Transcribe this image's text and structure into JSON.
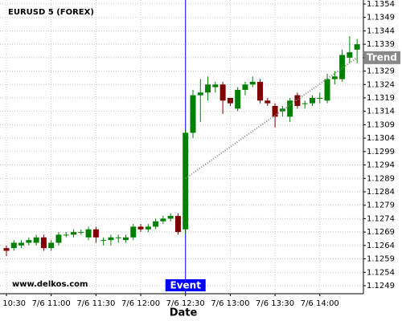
{
  "chart_data": {
    "type": "candlestick",
    "title": "EURUSD 5 (FOREX)",
    "watermark": "www.delkos.com",
    "x_label": "Date",
    "categories": [
      "7/6 10:30",
      null,
      null,
      null,
      null,
      null,
      "7/6 11:00",
      null,
      null,
      null,
      null,
      null,
      "7/6 11:30",
      null,
      null,
      null,
      null,
      null,
      "7/6 12:00",
      null,
      null,
      null,
      null,
      null,
      "7/6 12:30",
      null,
      null,
      null,
      null,
      null,
      "7/6 13:00",
      null,
      null,
      null,
      null,
      null,
      "7/6 13:30",
      null,
      null,
      null,
      null,
      null,
      "7/6 14:00",
      null,
      null,
      null,
      null,
      null
    ],
    "series": [
      {
        "name": "open",
        "values": [
          1.1263,
          1.1263,
          1.1264,
          1.1265,
          1.1265,
          1.1267,
          1.1263,
          1.1265,
          1.1268,
          1.1268,
          1.1269,
          1.1267,
          1.127,
          1.1266,
          1.1266,
          1.1267,
          1.1266,
          1.1267,
          1.1271,
          1.127,
          1.1271,
          1.1273,
          1.1274,
          1.1275,
          1.127,
          1.1306,
          1.132,
          1.1321,
          1.1323,
          1.1324,
          1.1319,
          1.1315,
          1.1322,
          1.1324,
          1.1325,
          1.1318,
          1.1316,
          1.1314,
          1.1312,
          1.132,
          1.1317,
          1.1317,
          1.1319,
          1.1318,
          1.1326,
          1.1326,
          1.1334,
          1.1337
        ]
      },
      {
        "name": "high",
        "values": [
          1.1264,
          1.1266,
          1.1266,
          1.1267,
          1.1268,
          1.1268,
          1.1266,
          1.1269,
          1.1269,
          1.127,
          1.127,
          1.1271,
          1.1271,
          1.1267,
          1.1268,
          1.1268,
          1.1268,
          1.1272,
          1.1272,
          1.1272,
          1.1274,
          1.1275,
          1.1276,
          1.1276,
          1.1307,
          1.1322,
          1.1326,
          1.1327,
          1.1325,
          1.1325,
          1.1319,
          1.1323,
          1.1325,
          1.1327,
          1.1326,
          1.1319,
          1.1317,
          1.1316,
          1.1319,
          1.1321,
          1.1318,
          1.132,
          1.1321,
          1.1328,
          1.1329,
          1.1337,
          1.1342,
          1.1341
        ]
      },
      {
        "name": "low",
        "values": [
          1.126,
          1.1262,
          1.1263,
          1.1264,
          1.1264,
          1.1262,
          1.1262,
          1.1264,
          1.1267,
          1.1267,
          1.1268,
          1.1266,
          1.1265,
          1.1264,
          1.1264,
          1.1265,
          1.1265,
          1.1266,
          1.1269,
          1.1269,
          1.127,
          1.1272,
          1.1273,
          1.1268,
          1.1268,
          1.1304,
          1.131,
          1.1318,
          1.1321,
          1.1313,
          1.1316,
          1.1314,
          1.132,
          1.1323,
          1.1317,
          1.1316,
          1.1308,
          1.1312,
          1.131,
          1.1315,
          1.1315,
          1.1316,
          1.1317,
          1.1317,
          1.1324,
          1.1325,
          1.1332,
          1.1332
        ]
      },
      {
        "name": "close",
        "values": [
          1.1262,
          1.1265,
          1.1265,
          1.1266,
          1.1267,
          1.1263,
          1.1265,
          1.1268,
          1.1268,
          1.1269,
          1.1269,
          1.127,
          1.1267,
          1.1266,
          1.1267,
          1.1267,
          1.1267,
          1.1271,
          1.127,
          1.1271,
          1.1273,
          1.1274,
          1.1275,
          1.1269,
          1.1306,
          1.132,
          1.1321,
          1.1324,
          1.1324,
          1.1318,
          1.1317,
          1.1322,
          1.1324,
          1.1325,
          1.1318,
          1.1317,
          1.1312,
          1.1315,
          1.1318,
          1.1316,
          1.1317,
          1.1319,
          1.1319,
          1.1326,
          1.1327,
          1.1335,
          1.1336,
          1.1339
        ]
      }
    ],
    "up_color": "#008000",
    "down_color": "#800000",
    "ylim": [
      1.1246,
      1.13555
    ],
    "yticks": [
      1.1249,
      1.1254,
      1.1259,
      1.1264,
      1.1269,
      1.1274,
      1.1279,
      1.1284,
      1.1289,
      1.1294,
      1.1299,
      1.1304,
      1.1309,
      1.1314,
      1.1319,
      1.1324,
      1.1329,
      1.1334,
      1.1339,
      1.1344,
      1.1349,
      1.1354
    ],
    "grid": true,
    "event": {
      "label": "Event",
      "x": "7/6 12:30",
      "color": "#0000ff"
    },
    "trend": {
      "label": "Trend",
      "values": [
        1.1289,
        1.1334
      ],
      "color": "#888888"
    }
  }
}
